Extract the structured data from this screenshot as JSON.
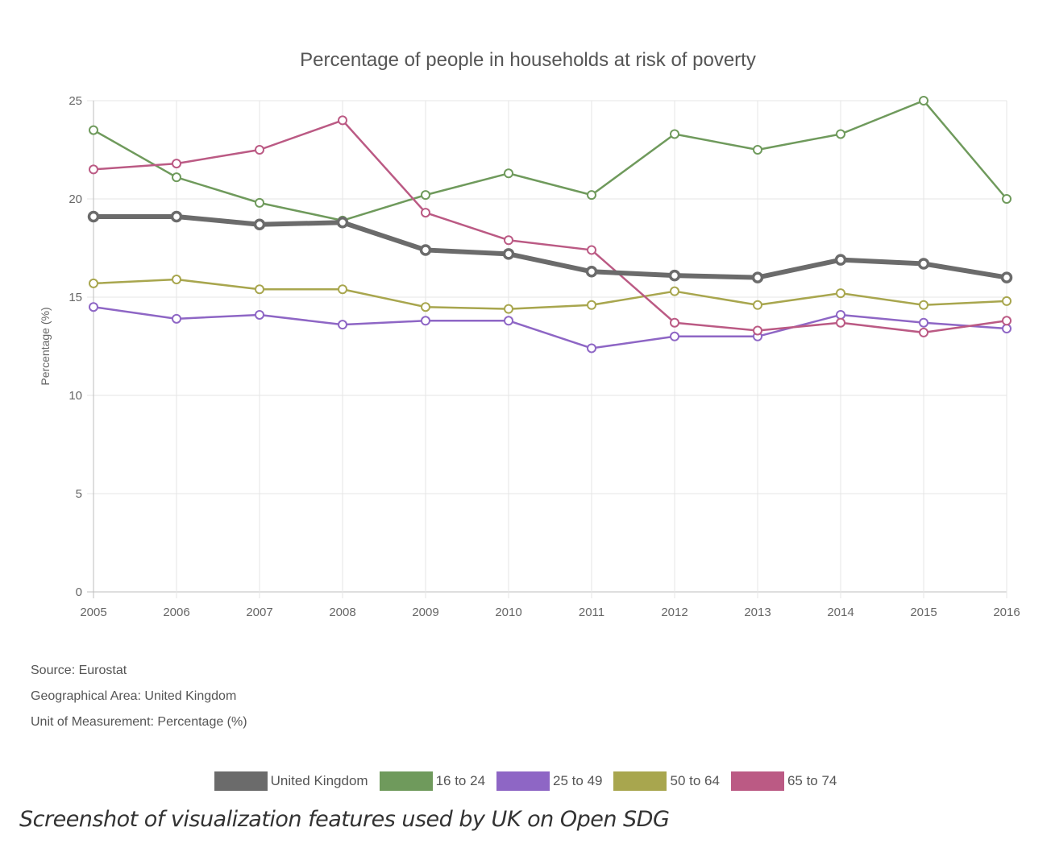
{
  "chart_data": {
    "type": "line",
    "title": "Percentage of people in households at risk of poverty",
    "xlabel": "",
    "ylabel": "Percentage (%)",
    "x": [
      "2005",
      "2006",
      "2007",
      "2008",
      "2009",
      "2010",
      "2011",
      "2012",
      "2013",
      "2014",
      "2015",
      "2016"
    ],
    "ylim": [
      0,
      25
    ],
    "yticks": [
      0,
      5,
      10,
      15,
      20,
      25
    ],
    "grid": true,
    "legend_position": "bottom",
    "series": [
      {
        "name": "United Kingdom",
        "color": "#6b6b6b",
        "values": [
          19.1,
          19.1,
          18.7,
          18.8,
          17.4,
          17.2,
          16.3,
          16.1,
          16.0,
          16.9,
          16.7,
          16.0
        ]
      },
      {
        "name": "16 to 24",
        "color": "#6f9a5c",
        "values": [
          23.5,
          21.1,
          19.8,
          18.9,
          20.2,
          21.3,
          20.2,
          23.3,
          22.5,
          23.3,
          25.0,
          20.0
        ]
      },
      {
        "name": "25 to 49",
        "color": "#8e66c5",
        "values": [
          14.5,
          13.9,
          14.1,
          13.6,
          13.8,
          13.8,
          12.4,
          13.0,
          13.0,
          14.1,
          13.7,
          13.4
        ]
      },
      {
        "name": "50 to 64",
        "color": "#a8a64e",
        "values": [
          15.7,
          15.9,
          15.4,
          15.4,
          14.5,
          14.4,
          14.6,
          15.3,
          14.6,
          15.2,
          14.6,
          14.8
        ]
      },
      {
        "name": "65 to 74",
        "color": "#bb5a84",
        "values": [
          21.5,
          21.8,
          22.5,
          24.0,
          19.3,
          17.9,
          17.4,
          13.7,
          13.3,
          13.7,
          13.2,
          13.8
        ]
      }
    ]
  },
  "meta": {
    "source": "Source: Eurostat",
    "area": "Geographical Area: United Kingdom",
    "unit": "Unit of Measurement: Percentage (%)"
  },
  "caption": "Screenshot of visualization features used by UK on Open SDG"
}
